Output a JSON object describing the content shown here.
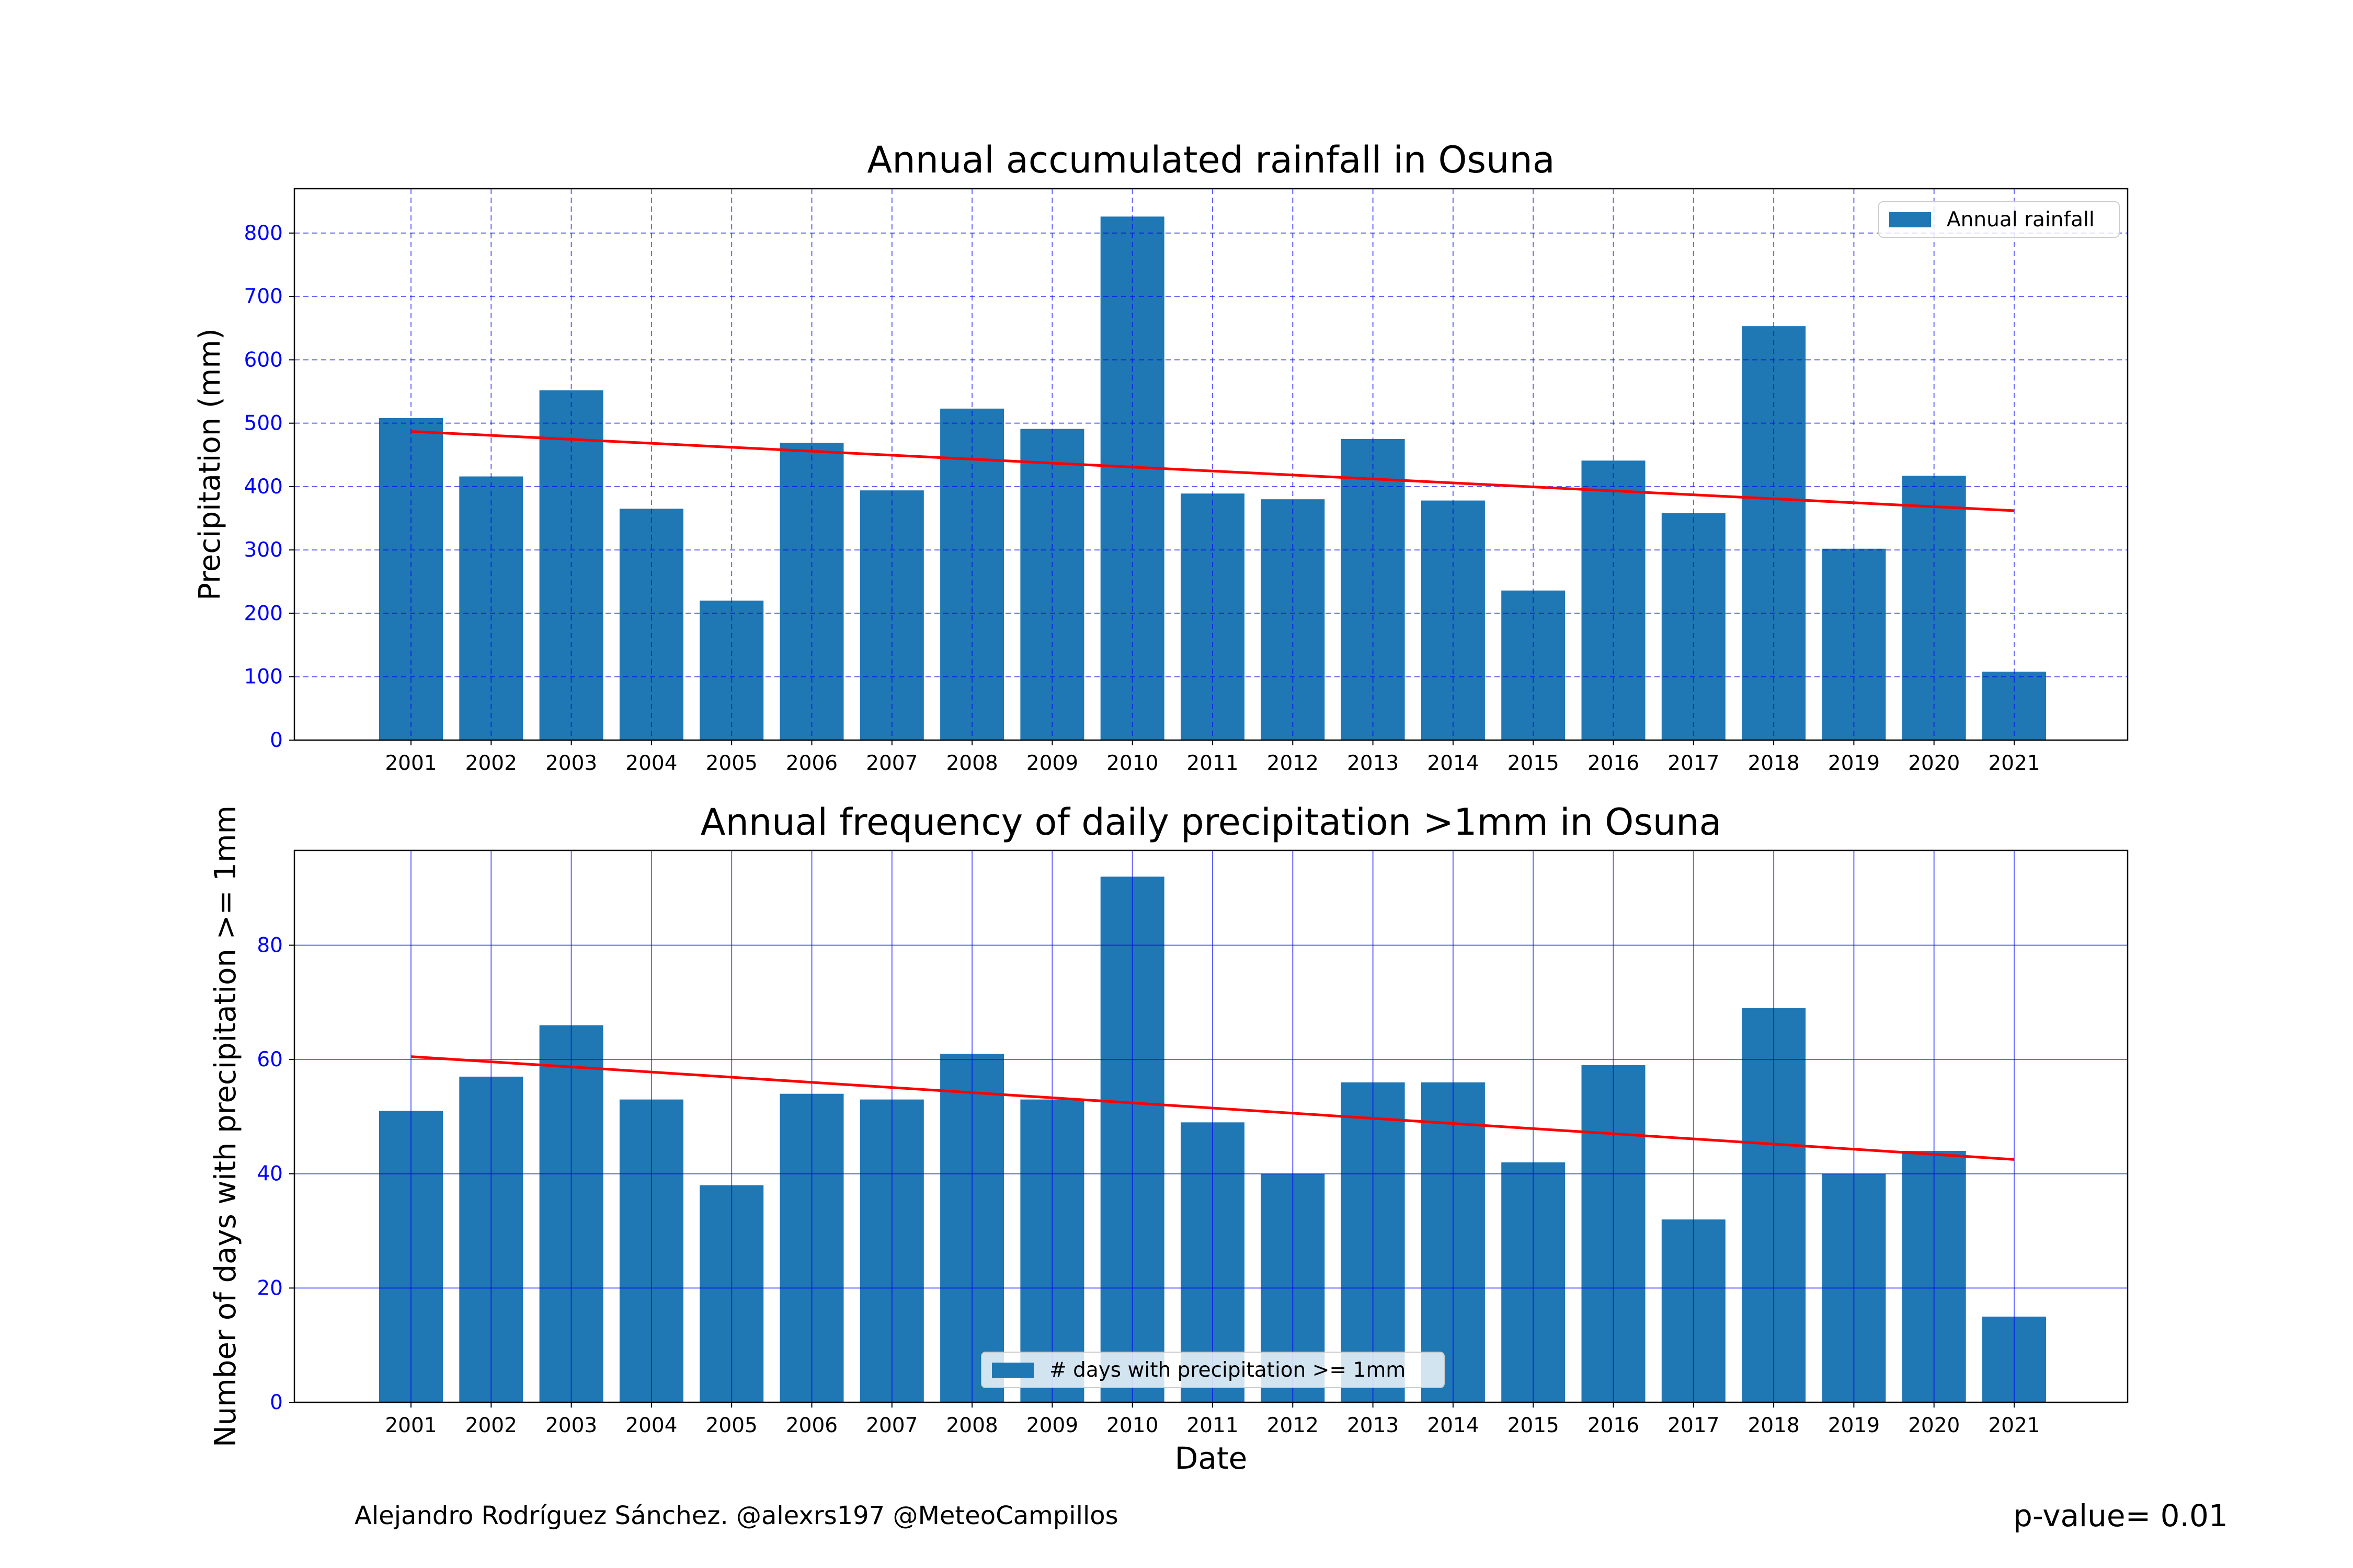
{
  "chart_data": [
    {
      "type": "bar",
      "title": "Annual accumulated rainfall in Osuna",
      "xlabel": "",
      "ylabel": "Precipitation (mm)",
      "categories": [
        "2001",
        "2002",
        "2003",
        "2004",
        "2005",
        "2006",
        "2007",
        "2008",
        "2009",
        "2010",
        "2011",
        "2012",
        "2013",
        "2014",
        "2015",
        "2016",
        "2017",
        "2018",
        "2019",
        "2020",
        "2021"
      ],
      "series": [
        {
          "name": "Annual rainfall",
          "values": [
            508,
            416,
            552,
            365,
            220,
            469,
            394,
            523,
            491,
            826,
            389,
            380,
            475,
            378,
            236,
            441,
            358,
            653,
            302,
            417,
            108
          ]
        }
      ],
      "trend": {
        "start": 487,
        "end": 362,
        "color": "#ff0000"
      },
      "ylim": [
        0,
        870
      ],
      "yticks": [
        0,
        100,
        200,
        300,
        400,
        500,
        600,
        700,
        800
      ],
      "grid": {
        "on": true,
        "style": "dashed",
        "color": "#0000ff"
      },
      "legend": "top-right",
      "bar_color": "#1f77b4"
    },
    {
      "type": "bar",
      "title": "Annual frequency of daily precipitation >1mm in Osuna",
      "xlabel": "Date",
      "ylabel": "Number of days with precipitation >= 1mm",
      "categories": [
        "2001",
        "2002",
        "2003",
        "2004",
        "2005",
        "2006",
        "2007",
        "2008",
        "2009",
        "2010",
        "2011",
        "2012",
        "2013",
        "2014",
        "2015",
        "2016",
        "2017",
        "2018",
        "2019",
        "2020",
        "2021"
      ],
      "series": [
        {
          "name": "# days with precipitation >= 1mm",
          "values": [
            51,
            57,
            66,
            53,
            38,
            54,
            53,
            61,
            53,
            92,
            49,
            40,
            56,
            56,
            42,
            59,
            32,
            69,
            40,
            44,
            15
          ]
        }
      ],
      "trend": {
        "start": 60.5,
        "end": 42.5,
        "color": "#ff0000"
      },
      "ylim": [
        0,
        96.6
      ],
      "yticks": [
        0,
        20,
        40,
        60,
        80
      ],
      "grid": {
        "on": true,
        "style": "solid",
        "color": "#0000ff"
      },
      "legend": "bottom-center",
      "bar_color": "#1f77b4"
    }
  ],
  "footer": {
    "credit": "Alejandro Rodríguez Sánchez. @alexrs197 @MeteoCampillos",
    "pvalue": "p-value= 0.01"
  }
}
